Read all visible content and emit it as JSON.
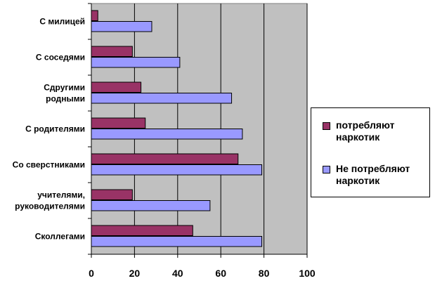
{
  "chart_data": {
    "type": "bar",
    "orientation": "horizontal",
    "categories": [
      [
        "С милицей"
      ],
      [
        "С соседями"
      ],
      [
        "Сдругими",
        "родными"
      ],
      [
        "С родителями"
      ],
      [
        "Со сверстниками"
      ],
      [
        "учителями,",
        "руководителями"
      ],
      [
        "Сколлегами"
      ]
    ],
    "series": [
      {
        "name": "потребляют наркотик",
        "color": "#993366",
        "values": [
          3,
          19,
          23,
          25,
          68,
          19,
          47
        ]
      },
      {
        "name": "Не потребляют наркотик",
        "color": "#9999ff",
        "values": [
          28,
          41,
          65,
          70,
          79,
          55,
          79
        ]
      }
    ],
    "xlim": [
      0,
      100
    ],
    "xticks": [
      "0",
      "20",
      "40",
      "60",
      "80",
      "100"
    ],
    "plot_background": "#c0c0c0",
    "grid": true,
    "legend_position": "right"
  }
}
